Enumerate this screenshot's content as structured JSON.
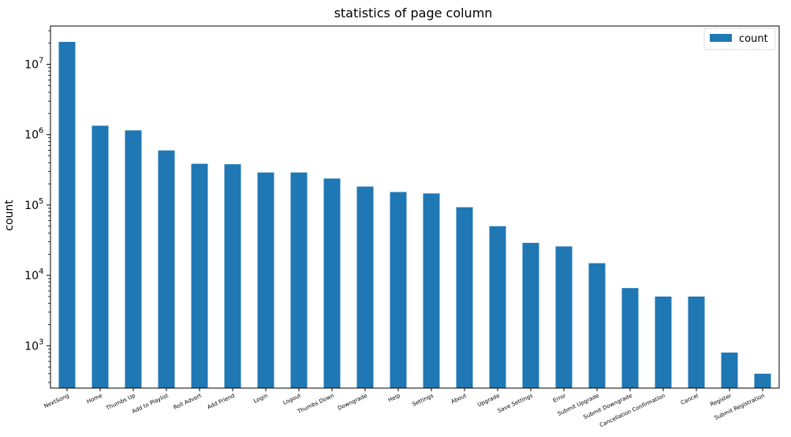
{
  "chart_data": {
    "type": "bar",
    "title": "statistics of page column",
    "xlabel": "",
    "ylabel": "count",
    "yscale": "log",
    "ylim": [
      250,
      35000000
    ],
    "yticks": [
      {
        "value": 1000,
        "base": "10",
        "exp": "3"
      },
      {
        "value": 10000,
        "base": "10",
        "exp": "4"
      },
      {
        "value": 100000,
        "base": "10",
        "exp": "5"
      },
      {
        "value": 1000000,
        "base": "10",
        "exp": "6"
      },
      {
        "value": 10000000,
        "base": "10",
        "exp": "7"
      }
    ],
    "legend": {
      "position": "top-right",
      "label": "count"
    },
    "bar_color": "#1f77b4",
    "categories": [
      "NextSong",
      "Home",
      "Thumbs Up",
      "Add to Playlist",
      "Roll Advert",
      "Add Friend",
      "Login",
      "Logout",
      "Thumbs Down",
      "Downgrade",
      "Help",
      "Settings",
      "About",
      "Upgrade",
      "Save Settings",
      "Error",
      "Submit Upgrade",
      "Submit Downgrade",
      "Cancellation Confirmation",
      "Cancel",
      "Register",
      "Submit Registration"
    ],
    "values": [
      20850000,
      1340000,
      1150000,
      597000,
      386000,
      380000,
      290000,
      290000,
      238000,
      183000,
      153000,
      146000,
      93000,
      50000,
      29000,
      25800,
      14900,
      6600,
      5000,
      5000,
      800,
      400
    ]
  }
}
